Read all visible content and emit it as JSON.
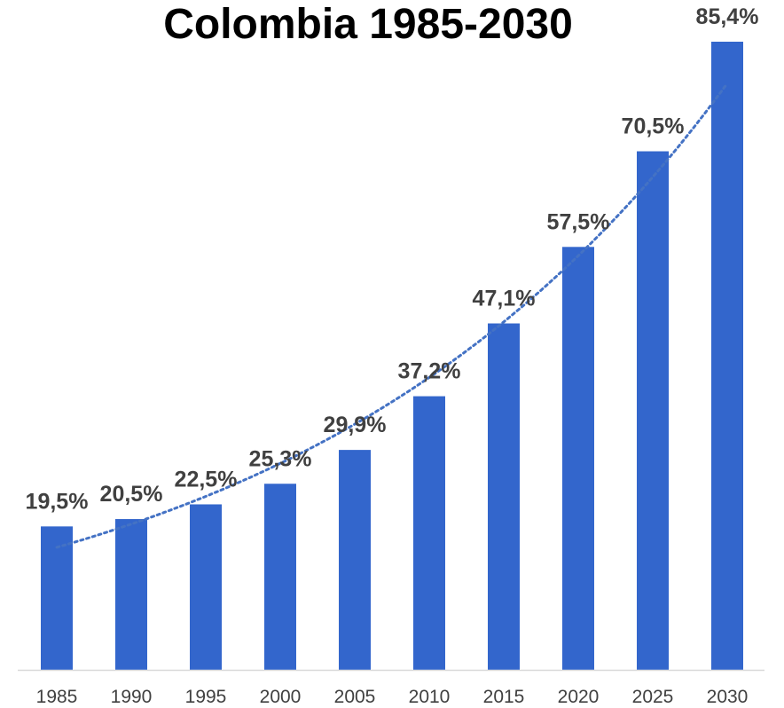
{
  "chart_data": {
    "type": "bar",
    "title": "Colombia 1985-2030",
    "xlabel": "",
    "ylabel": "",
    "categories": [
      "1985",
      "1990",
      "1995",
      "2000",
      "2005",
      "2010",
      "2015",
      "2020",
      "2025",
      "2030"
    ],
    "values": [
      19.5,
      20.5,
      22.5,
      25.3,
      29.9,
      37.2,
      47.1,
      57.5,
      70.5,
      85.4
    ],
    "data_labels": [
      "19,5%",
      "20,5%",
      "22,5%",
      "25,3%",
      "29,9%",
      "37,2%",
      "47,1%",
      "57,5%",
      "70,5%",
      "85,4%"
    ],
    "ylim": [
      0,
      85.4
    ],
    "grid": false,
    "legend": "none",
    "trendline": "exponential, dotted",
    "colors": {
      "bar": "#3366CC",
      "trendline": "#4472C4",
      "axis": "#D9D9D9",
      "label": "#404040",
      "title": "#000000"
    }
  }
}
